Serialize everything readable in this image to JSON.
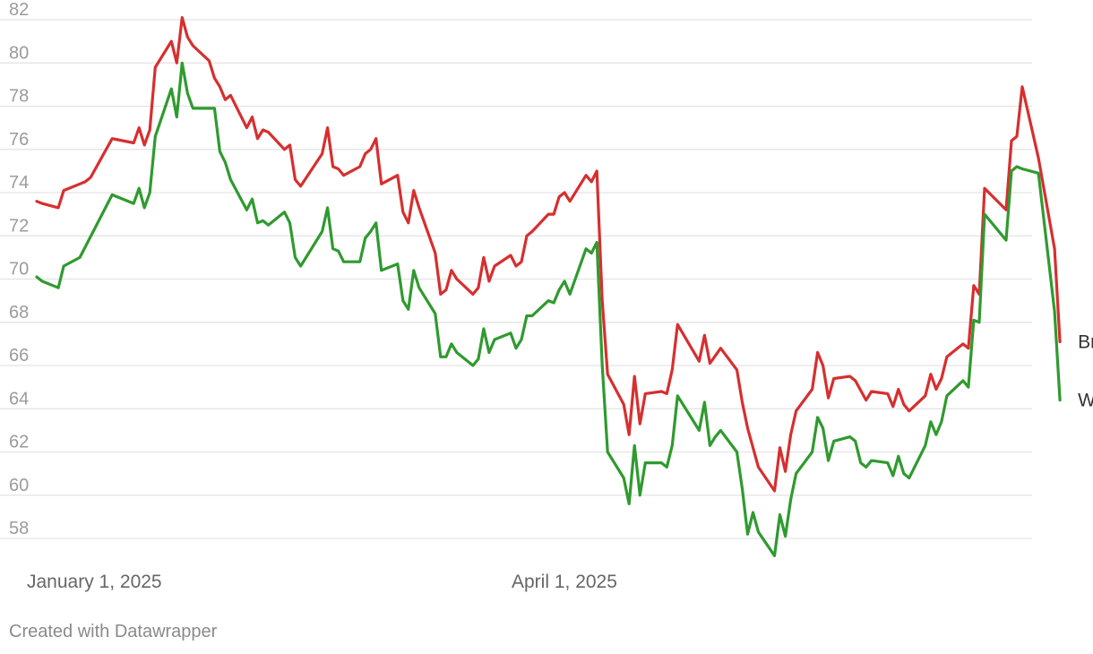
{
  "footer": "Created with Datawrapper",
  "chart_data": {
    "type": "line",
    "title": "",
    "xlabel": "",
    "ylabel": "",
    "ylim": [
      57,
      82
    ],
    "y_ticks": [
      82,
      80,
      78,
      76,
      74,
      72,
      70,
      68,
      66,
      64,
      62,
      60,
      58
    ],
    "x_ticks": [
      {
        "label": "January 1, 2025",
        "date": "2025-01-01"
      },
      {
        "label": "April 1, 2025",
        "date": "2025-04-01"
      }
    ],
    "xrange": [
      "2025-01-01",
      "2025-07-01"
    ],
    "grid": true,
    "legend": "inline labels at line ends (right)",
    "series": [
      {
        "name": "Brent",
        "color": "#d62f2f",
        "points": [
          [
            "2025-01-02",
            73.6
          ],
          [
            "2025-01-03",
            73.5
          ],
          [
            "2025-01-06",
            73.3
          ],
          [
            "2025-01-07",
            74.1
          ],
          [
            "2025-01-10",
            74.4
          ],
          [
            "2025-01-11",
            74.5
          ],
          [
            "2025-01-12",
            74.7
          ],
          [
            "2025-01-16",
            76.5
          ],
          [
            "2025-01-20",
            76.3
          ],
          [
            "2025-01-21",
            77.0
          ],
          [
            "2025-01-22",
            76.2
          ],
          [
            "2025-01-23",
            76.9
          ],
          [
            "2025-01-24",
            79.8
          ],
          [
            "2025-01-27",
            81.0
          ],
          [
            "2025-01-28",
            80.0
          ],
          [
            "2025-01-29",
            82.1
          ],
          [
            "2025-01-30",
            81.2
          ],
          [
            "2025-01-31",
            80.8
          ],
          [
            "2025-02-03",
            80.1
          ],
          [
            "2025-02-04",
            79.3
          ],
          [
            "2025-02-05",
            78.9
          ],
          [
            "2025-02-06",
            78.3
          ],
          [
            "2025-02-07",
            78.5
          ],
          [
            "2025-02-10",
            77.0
          ],
          [
            "2025-02-11",
            77.5
          ],
          [
            "2025-02-12",
            76.5
          ],
          [
            "2025-02-13",
            76.9
          ],
          [
            "2025-02-14",
            76.8
          ],
          [
            "2025-02-17",
            76.0
          ],
          [
            "2025-02-18",
            76.2
          ],
          [
            "2025-02-19",
            74.6
          ],
          [
            "2025-02-20",
            74.3
          ],
          [
            "2025-02-24",
            75.8
          ],
          [
            "2025-02-25",
            77.0
          ],
          [
            "2025-02-26",
            75.2
          ],
          [
            "2025-02-27",
            75.1
          ],
          [
            "2025-02-28",
            74.8
          ],
          [
            "2025-03-03",
            75.2
          ],
          [
            "2025-03-04",
            75.8
          ],
          [
            "2025-03-05",
            76.0
          ],
          [
            "2025-03-06",
            76.5
          ],
          [
            "2025-03-07",
            74.4
          ],
          [
            "2025-03-10",
            74.8
          ],
          [
            "2025-03-11",
            73.1
          ],
          [
            "2025-03-12",
            72.6
          ],
          [
            "2025-03-13",
            74.1
          ],
          [
            "2025-03-14",
            73.3
          ],
          [
            "2025-03-17",
            71.2
          ],
          [
            "2025-03-18",
            69.3
          ],
          [
            "2025-03-19",
            69.5
          ],
          [
            "2025-03-20",
            70.4
          ],
          [
            "2025-03-21",
            70.0
          ],
          [
            "2025-03-24",
            69.3
          ],
          [
            "2025-03-25",
            69.6
          ],
          [
            "2025-03-26",
            71.0
          ],
          [
            "2025-03-27",
            69.9
          ],
          [
            "2025-03-28",
            70.6
          ],
          [
            "2025-03-31",
            71.1
          ],
          [
            "2025-04-01",
            70.6
          ],
          [
            "2025-04-02",
            70.8
          ],
          [
            "2025-04-03",
            72.0
          ],
          [
            "2025-04-04",
            72.2
          ],
          [
            "2025-04-07",
            73.0
          ],
          [
            "2025-04-08",
            73.0
          ],
          [
            "2025-04-09",
            73.8
          ],
          [
            "2025-04-10",
            74.0
          ],
          [
            "2025-04-11",
            73.6
          ],
          [
            "2025-04-14",
            74.8
          ],
          [
            "2025-04-15",
            74.5
          ],
          [
            "2025-04-16",
            75.0
          ],
          [
            "2025-04-17",
            69.0
          ],
          [
            "2025-04-18",
            65.6
          ],
          [
            "2025-04-21",
            64.2
          ],
          [
            "2025-04-22",
            62.8
          ],
          [
            "2025-04-23",
            65.5
          ],
          [
            "2025-04-24",
            63.3
          ],
          [
            "2025-04-25",
            64.7
          ],
          [
            "2025-04-28",
            64.8
          ],
          [
            "2025-04-29",
            64.7
          ],
          [
            "2025-04-30",
            65.8
          ],
          [
            "2025-05-01",
            67.9
          ],
          [
            "2025-05-05",
            66.2
          ],
          [
            "2025-05-06",
            67.4
          ],
          [
            "2025-05-07",
            66.1
          ],
          [
            "2025-05-09",
            66.8
          ],
          [
            "2025-05-12",
            65.8
          ],
          [
            "2025-05-13",
            64.3
          ],
          [
            "2025-05-14",
            63.1
          ],
          [
            "2025-05-16",
            61.3
          ],
          [
            "2025-05-19",
            60.2
          ],
          [
            "2025-05-20",
            62.2
          ],
          [
            "2025-05-21",
            61.1
          ],
          [
            "2025-05-22",
            62.8
          ],
          [
            "2025-05-23",
            63.9
          ],
          [
            "2025-05-26",
            64.9
          ],
          [
            "2025-05-27",
            66.6
          ],
          [
            "2025-05-28",
            66.0
          ],
          [
            "2025-05-29",
            64.5
          ],
          [
            "2025-05-30",
            65.4
          ],
          [
            "2025-06-02",
            65.5
          ],
          [
            "2025-06-03",
            65.3
          ],
          [
            "2025-06-05",
            64.4
          ],
          [
            "2025-06-06",
            64.8
          ],
          [
            "2025-06-09",
            64.7
          ],
          [
            "2025-06-10",
            64.1
          ],
          [
            "2025-06-11",
            64.9
          ],
          [
            "2025-06-12",
            64.2
          ],
          [
            "2025-06-13",
            63.9
          ],
          [
            "2025-06-16",
            64.6
          ],
          [
            "2025-06-17",
            65.6
          ],
          [
            "2025-06-18",
            64.9
          ],
          [
            "2025-06-19",
            65.4
          ],
          [
            "2025-06-20",
            66.4
          ],
          [
            "2025-06-23",
            67.0
          ],
          [
            "2025-06-24",
            66.8
          ],
          [
            "2025-06-25",
            69.7
          ],
          [
            "2025-06-26",
            69.3
          ],
          [
            "2025-06-27",
            74.2
          ],
          [
            "2025-07-01",
            73.2
          ],
          [
            "2025-07-02",
            76.4
          ],
          [
            "2025-07-03",
            76.6
          ],
          [
            "2025-07-04",
            78.9
          ],
          [
            "2025-07-07",
            75.6
          ],
          [
            "2025-07-10",
            71.4
          ],
          [
            "2025-07-11",
            67.1
          ]
        ]
      },
      {
        "name": "WTI",
        "color": "#2f9a2f",
        "points": [
          [
            "2025-01-02",
            70.1
          ],
          [
            "2025-01-03",
            69.9
          ],
          [
            "2025-01-06",
            69.6
          ],
          [
            "2025-01-07",
            70.6
          ],
          [
            "2025-01-10",
            71.0
          ],
          [
            "2025-01-16",
            73.9
          ],
          [
            "2025-01-20",
            73.5
          ],
          [
            "2025-01-21",
            74.2
          ],
          [
            "2025-01-22",
            73.3
          ],
          [
            "2025-01-23",
            74.0
          ],
          [
            "2025-01-24",
            76.6
          ],
          [
            "2025-01-27",
            78.8
          ],
          [
            "2025-01-28",
            77.5
          ],
          [
            "2025-01-29",
            80.0
          ],
          [
            "2025-01-30",
            78.6
          ],
          [
            "2025-01-31",
            77.9
          ],
          [
            "2025-02-03",
            77.9
          ],
          [
            "2025-02-04",
            77.9
          ],
          [
            "2025-02-05",
            75.9
          ],
          [
            "2025-02-06",
            75.4
          ],
          [
            "2025-02-07",
            74.6
          ],
          [
            "2025-02-10",
            73.2
          ],
          [
            "2025-02-11",
            73.7
          ],
          [
            "2025-02-12",
            72.6
          ],
          [
            "2025-02-13",
            72.7
          ],
          [
            "2025-02-14",
            72.5
          ],
          [
            "2025-02-17",
            73.1
          ],
          [
            "2025-02-18",
            72.6
          ],
          [
            "2025-02-19",
            71.0
          ],
          [
            "2025-02-20",
            70.6
          ],
          [
            "2025-02-24",
            72.2
          ],
          [
            "2025-02-25",
            73.3
          ],
          [
            "2025-02-26",
            71.4
          ],
          [
            "2025-02-27",
            71.3
          ],
          [
            "2025-02-28",
            70.8
          ],
          [
            "2025-03-03",
            70.8
          ],
          [
            "2025-03-04",
            71.9
          ],
          [
            "2025-03-05",
            72.2
          ],
          [
            "2025-03-06",
            72.6
          ],
          [
            "2025-03-07",
            70.4
          ],
          [
            "2025-03-10",
            70.7
          ],
          [
            "2025-03-11",
            69.0
          ],
          [
            "2025-03-12",
            68.6
          ],
          [
            "2025-03-13",
            70.4
          ],
          [
            "2025-03-14",
            69.6
          ],
          [
            "2025-03-17",
            68.4
          ],
          [
            "2025-03-18",
            66.4
          ],
          [
            "2025-03-19",
            66.4
          ],
          [
            "2025-03-20",
            67.0
          ],
          [
            "2025-03-21",
            66.6
          ],
          [
            "2025-03-24",
            66.0
          ],
          [
            "2025-03-25",
            66.3
          ],
          [
            "2025-03-26",
            67.7
          ],
          [
            "2025-03-27",
            66.6
          ],
          [
            "2025-03-28",
            67.2
          ],
          [
            "2025-03-31",
            67.5
          ],
          [
            "2025-04-01",
            66.8
          ],
          [
            "2025-04-02",
            67.2
          ],
          [
            "2025-04-03",
            68.3
          ],
          [
            "2025-04-04",
            68.3
          ],
          [
            "2025-04-07",
            69.0
          ],
          [
            "2025-04-08",
            68.9
          ],
          [
            "2025-04-09",
            69.5
          ],
          [
            "2025-04-10",
            69.9
          ],
          [
            "2025-04-11",
            69.3
          ],
          [
            "2025-04-14",
            71.4
          ],
          [
            "2025-04-15",
            71.2
          ],
          [
            "2025-04-16",
            71.7
          ],
          [
            "2025-04-17",
            66.0
          ],
          [
            "2025-04-18",
            62.0
          ],
          [
            "2025-04-21",
            60.8
          ],
          [
            "2025-04-22",
            59.6
          ],
          [
            "2025-04-23",
            62.3
          ],
          [
            "2025-04-24",
            60.0
          ],
          [
            "2025-04-25",
            61.5
          ],
          [
            "2025-04-28",
            61.5
          ],
          [
            "2025-04-29",
            61.3
          ],
          [
            "2025-04-30",
            62.3
          ],
          [
            "2025-05-01",
            64.6
          ],
          [
            "2025-05-05",
            63.0
          ],
          [
            "2025-05-06",
            64.3
          ],
          [
            "2025-05-07",
            62.3
          ],
          [
            "2025-05-08",
            62.7
          ],
          [
            "2025-05-09",
            63.0
          ],
          [
            "2025-05-12",
            62.0
          ],
          [
            "2025-05-13",
            60.3
          ],
          [
            "2025-05-14",
            58.2
          ],
          [
            "2025-05-15",
            59.2
          ],
          [
            "2025-05-16",
            58.3
          ],
          [
            "2025-05-19",
            57.2
          ],
          [
            "2025-05-20",
            59.1
          ],
          [
            "2025-05-21",
            58.1
          ],
          [
            "2025-05-22",
            59.8
          ],
          [
            "2025-05-23",
            61.0
          ],
          [
            "2025-05-26",
            62.0
          ],
          [
            "2025-05-27",
            63.6
          ],
          [
            "2025-05-28",
            63.1
          ],
          [
            "2025-05-29",
            61.6
          ],
          [
            "2025-05-30",
            62.5
          ],
          [
            "2025-06-02",
            62.7
          ],
          [
            "2025-06-03",
            62.5
          ],
          [
            "2025-06-04",
            61.5
          ],
          [
            "2025-06-05",
            61.3
          ],
          [
            "2025-06-06",
            61.6
          ],
          [
            "2025-06-09",
            61.5
          ],
          [
            "2025-06-10",
            60.9
          ],
          [
            "2025-06-11",
            61.8
          ],
          [
            "2025-06-12",
            61.0
          ],
          [
            "2025-06-13",
            60.8
          ],
          [
            "2025-06-16",
            62.3
          ],
          [
            "2025-06-17",
            63.4
          ],
          [
            "2025-06-18",
            62.8
          ],
          [
            "2025-06-19",
            63.4
          ],
          [
            "2025-06-20",
            64.6
          ],
          [
            "2025-06-23",
            65.3
          ],
          [
            "2025-06-24",
            65.0
          ],
          [
            "2025-06-25",
            68.1
          ],
          [
            "2025-06-26",
            68.0
          ],
          [
            "2025-06-27",
            73.0
          ],
          [
            "2025-07-01",
            71.8
          ],
          [
            "2025-07-02",
            75.0
          ],
          [
            "2025-07-03",
            75.2
          ],
          [
            "2025-07-04",
            75.1
          ],
          [
            "2025-07-07",
            74.9
          ],
          [
            "2025-07-10",
            68.5
          ],
          [
            "2025-07-11",
            64.4
          ]
        ]
      }
    ]
  }
}
